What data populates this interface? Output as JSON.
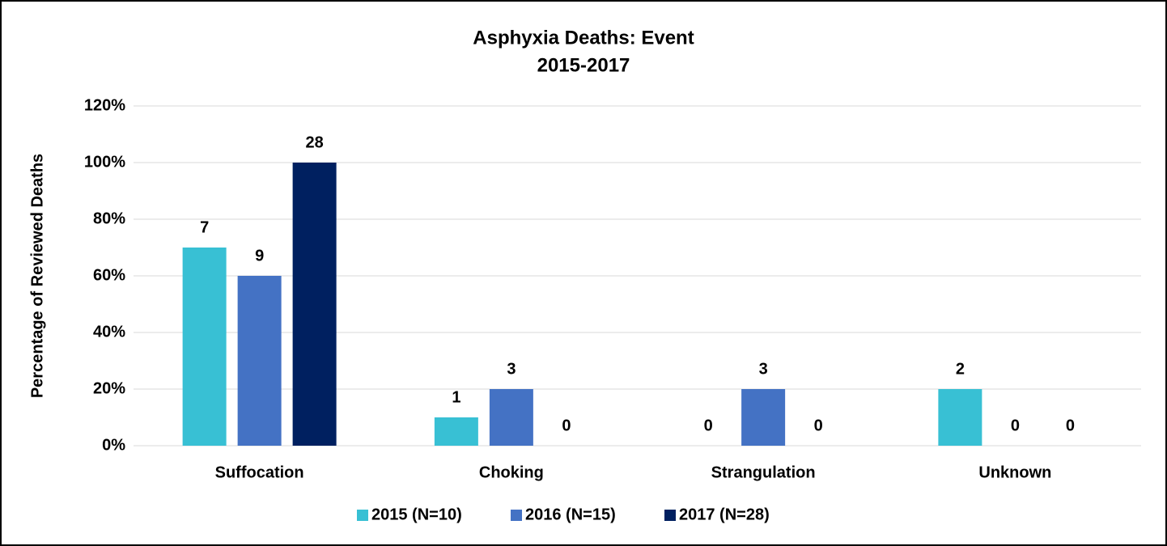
{
  "chart_data": {
    "type": "bar",
    "title": "Asphyxia Deaths: Event",
    "subtitle": "2015-2017",
    "y_label": "Percentage of Reviewed Deaths",
    "categories": [
      "Suffocation",
      "Choking",
      "Strangulation",
      "Unknown"
    ],
    "series": [
      {
        "name": "2015 (N=10)",
        "color": "#38c0d4",
        "values": [
          70,
          10,
          0,
          20
        ],
        "counts": [
          7,
          1,
          0,
          2
        ]
      },
      {
        "name": "2016 (N=15)",
        "color": "#4472c4",
        "values": [
          60,
          20,
          20,
          0
        ],
        "counts": [
          9,
          3,
          3,
          0
        ]
      },
      {
        "name": "2017 (N=28)",
        "color": "#002060",
        "values": [
          100,
          0,
          0,
          0
        ],
        "counts": [
          28,
          0,
          0,
          0
        ]
      }
    ],
    "ylim": [
      0,
      120
    ],
    "yticks": [
      {
        "value": 0,
        "label": "0%"
      },
      {
        "value": 20,
        "label": "20%"
      },
      {
        "value": 40,
        "label": "40%"
      },
      {
        "value": 60,
        "label": "60%"
      },
      {
        "value": 80,
        "label": "80%"
      },
      {
        "value": 100,
        "label": "100%"
      },
      {
        "value": 120,
        "label": "120%"
      }
    ],
    "grid": true,
    "legend": "bottom"
  }
}
